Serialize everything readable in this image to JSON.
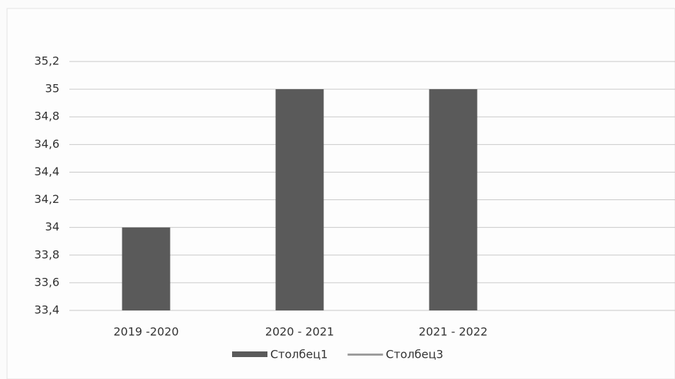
{
  "chart_data": {
    "type": "bar",
    "categories": [
      "2019 -2020",
      "2020 - 2021",
      "2021 - 2022",
      null
    ],
    "series": [
      {
        "name": "Столбец1",
        "color": "#5a5a5a",
        "values": [
          34,
          35,
          35,
          null
        ]
      },
      {
        "name": "Столбец3",
        "color": "#9c9c9c",
        "values": [
          null,
          null,
          null,
          null
        ]
      }
    ],
    "ylim": [
      33.4,
      35.2
    ],
    "yticks": [
      {
        "value": 33.4,
        "label": "33,4"
      },
      {
        "value": 33.6,
        "label": "33,6"
      },
      {
        "value": 33.8,
        "label": "33,8"
      },
      34,
      {
        "value": 34.2,
        "label": "34,2"
      },
      {
        "value": 34.4,
        "label": "34,4"
      },
      {
        "value": 34.6,
        "label": "34,6"
      },
      {
        "value": 34.8,
        "label": "34,8"
      },
      35,
      {
        "value": 35.2,
        "label": "35,2"
      }
    ],
    "grid": true,
    "legend": "bottom"
  }
}
